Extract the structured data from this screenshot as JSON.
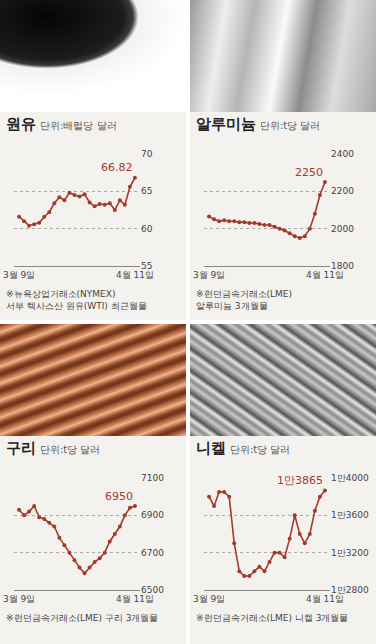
{
  "chart_data": [
    {
      "type": "line",
      "title": "원유",
      "subtitle": "단위:배럴당 달러",
      "note": [
        "※뉴욕상업거래소(NYMEX)",
        "서부 텍사스산 원유(WTI) 최근월물"
      ],
      "categories": [
        "3월 9일",
        null,
        null,
        null,
        null,
        null,
        null,
        null,
        null,
        null,
        null,
        null,
        null,
        null,
        null,
        null,
        null,
        null,
        null,
        null,
        null,
        null,
        null,
        "4월 11일"
      ],
      "values": [
        61.6,
        61.0,
        60.4,
        60.6,
        60.8,
        61.6,
        62.2,
        63.4,
        64.2,
        63.8,
        64.8,
        64.5,
        64.3,
        64.6,
        63.5,
        63.0,
        63.3,
        63.2,
        63.4,
        62.5,
        63.8,
        63.2,
        65.6,
        66.82
      ],
      "value_labels": [
        null,
        null,
        null,
        null,
        null,
        null,
        null,
        null,
        null,
        null,
        null,
        null,
        null,
        null,
        null,
        null,
        null,
        null,
        null,
        null,
        null,
        null,
        null,
        "66.82"
      ],
      "data_labels": true,
      "color": "#a33a2c",
      "marker": "circle",
      "ylim": [
        55,
        70
      ],
      "yticks": [
        55,
        60,
        65,
        70
      ],
      "grid": true
    },
    {
      "type": "line",
      "title": "알루미늄",
      "subtitle": "단위:t당 달러",
      "note": [
        "※런던금속거래소(LME)",
        "알루미늄 3개월물"
      ],
      "categories": [
        "3월 9일",
        null,
        null,
        null,
        null,
        null,
        null,
        null,
        null,
        null,
        null,
        null,
        null,
        null,
        null,
        null,
        null,
        null,
        null,
        null,
        null,
        null,
        null,
        "4월 11일"
      ],
      "values": [
        2065,
        2050,
        2040,
        2045,
        2040,
        2040,
        2035,
        2035,
        2030,
        2030,
        2025,
        2020,
        2020,
        2010,
        2000,
        1990,
        1975,
        1960,
        1950,
        1960,
        2000,
        2080,
        2180,
        2250
      ],
      "value_labels": [
        null,
        null,
        null,
        null,
        null,
        null,
        null,
        null,
        null,
        null,
        null,
        null,
        null,
        null,
        null,
        null,
        null,
        null,
        null,
        null,
        null,
        null,
        null,
        "2250"
      ],
      "data_labels": true,
      "color": "#a33a2c",
      "marker": "circle",
      "ylim": [
        1800,
        2400
      ],
      "yticks": [
        1800,
        2000,
        2200,
        2400
      ],
      "grid": true
    },
    {
      "type": "line",
      "title": "구리",
      "subtitle": "단위:t당 달러",
      "note": [
        "※런던금속거래소(LME) 구리 3개월물"
      ],
      "categories": [
        "3월 9일",
        null,
        null,
        null,
        null,
        null,
        null,
        null,
        null,
        null,
        null,
        null,
        null,
        null,
        null,
        null,
        null,
        null,
        null,
        null,
        null,
        null,
        null,
        "4월 11일"
      ],
      "values": [
        6930,
        6900,
        6920,
        6950,
        6890,
        6880,
        6860,
        6840,
        6780,
        6740,
        6700,
        6660,
        6620,
        6590,
        6620,
        6650,
        6670,
        6700,
        6760,
        6800,
        6840,
        6900,
        6940,
        6950
      ],
      "value_labels": [
        null,
        null,
        null,
        null,
        null,
        null,
        null,
        null,
        null,
        null,
        null,
        null,
        null,
        null,
        null,
        null,
        null,
        null,
        null,
        null,
        null,
        null,
        null,
        "6950"
      ],
      "data_labels": true,
      "color": "#a33a2c",
      "marker": "circle",
      "ylim": [
        6500,
        7100
      ],
      "yticks": [
        6500,
        6700,
        6900,
        7100
      ],
      "grid": true
    },
    {
      "type": "line",
      "title": "니켈",
      "subtitle": "단위:t당 달러",
      "note": [
        "※런던금속거래소(LME) 니켈 3개월물"
      ],
      "categories": [
        "3월 9일",
        null,
        null,
        null,
        null,
        null,
        null,
        null,
        null,
        null,
        null,
        null,
        null,
        null,
        null,
        null,
        null,
        null,
        null,
        null,
        null,
        null,
        null,
        "4월 11일"
      ],
      "values": [
        13800,
        13700,
        13850,
        13850,
        13800,
        13300,
        13000,
        12950,
        12950,
        13000,
        13050,
        13000,
        13100,
        13200,
        13200,
        13150,
        13350,
        13600,
        13400,
        13300,
        13400,
        13650,
        13800,
        13865
      ],
      "value_labels": [
        null,
        null,
        null,
        null,
        null,
        null,
        null,
        null,
        null,
        null,
        null,
        null,
        null,
        null,
        null,
        null,
        null,
        null,
        null,
        null,
        null,
        null,
        null,
        "1만3865"
      ],
      "data_labels": true,
      "color": "#a33a2c",
      "marker": "circle",
      "ylim": [
        12800,
        14000
      ],
      "yticks": [
        {
          "value": 12800,
          "label": "1만2800"
        },
        {
          "value": 13200,
          "label": "1만3200"
        },
        {
          "value": 13600,
          "label": "1만3600"
        },
        {
          "value": 14000,
          "label": "1만4000"
        }
      ],
      "grid": true
    }
  ]
}
